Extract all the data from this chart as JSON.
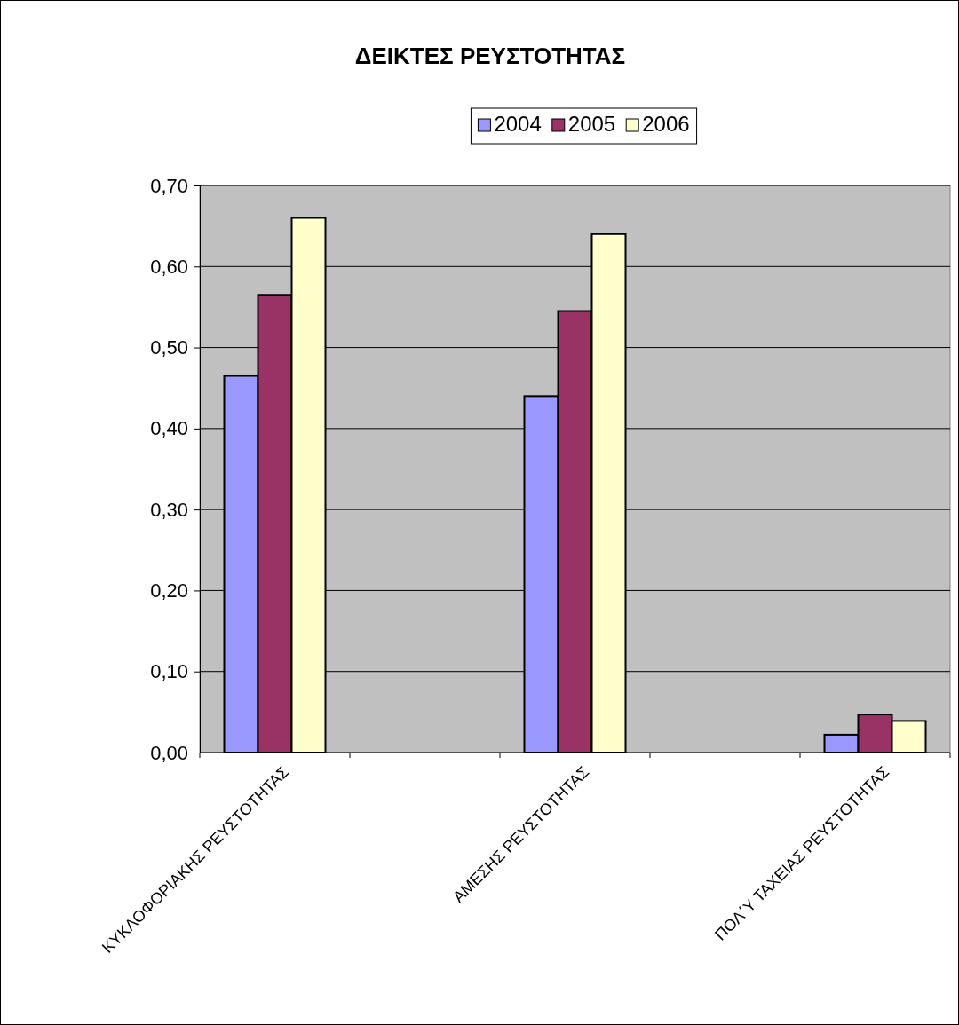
{
  "chart_data": {
    "type": "bar",
    "title": "ΔΕΙΚΤΕΣ ΡΕΥΣΤΟΤΗΤΑΣ",
    "categories": [
      "ΚΥΚΛΟΦΟΡΙΑΚΗΣ ΡΕΥΣΤΟΤΗΤΑΣ",
      null,
      "ΑΜΕΣΗΣ ΡΕΥΣΤΟΤΗΤΑΣ",
      null,
      "ΠΟΛ΄Υ ΤΑΧΕΙΑΣ ΡΕΥΣΤΟΤΗΤΑΣ"
    ],
    "series": [
      {
        "name": "2004",
        "color": "#9999ff",
        "values": [
          0.465,
          null,
          0.44,
          null,
          0.022
        ]
      },
      {
        "name": "2005",
        "color": "#993366",
        "values": [
          0.565,
          null,
          0.545,
          null,
          0.047
        ]
      },
      {
        "name": "2006",
        "color": "#ffffcc",
        "values": [
          0.66,
          null,
          0.64,
          null,
          0.039
        ]
      }
    ],
    "ylim": [
      0,
      0.7
    ],
    "yticks": [
      {
        "value": 0,
        "label": "0,00"
      },
      {
        "value": 0.1,
        "label": "0,10"
      },
      {
        "value": 0.2,
        "label": "0,20"
      },
      {
        "value": 0.3,
        "label": "0,30"
      },
      {
        "value": 0.4,
        "label": "0,40"
      },
      {
        "value": 0.5,
        "label": "0,50"
      },
      {
        "value": 0.6,
        "label": "0,60"
      },
      {
        "value": 0.7,
        "label": "0,70"
      }
    ],
    "grid": "y",
    "legend": "top"
  }
}
